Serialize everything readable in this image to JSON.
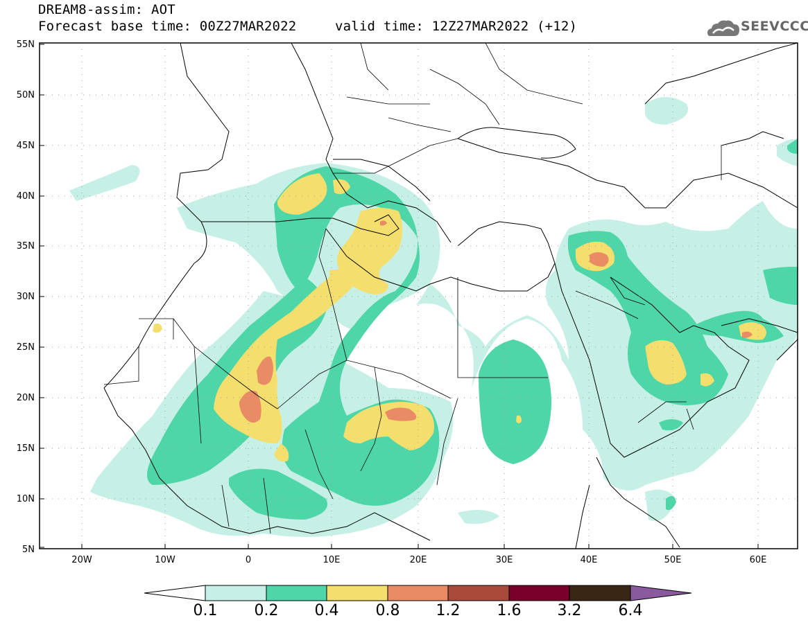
{
  "title": {
    "line1": "DREAM8-assim: AOT",
    "base_time": "Forecast base time: 00Z27MAR2022",
    "valid_time": "valid time: 12Z27MAR2022 (+12)"
  },
  "logo": {
    "text": "SEEVCCC",
    "icon": "cloud-icon"
  },
  "axes": {
    "lat_labels": [
      "55N",
      "50N",
      "45N",
      "40N",
      "35N",
      "30N",
      "25N",
      "20N",
      "15N",
      "10N",
      "5N"
    ],
    "lon_labels": [
      "20W",
      "10W",
      "0",
      "10E",
      "20E",
      "30E",
      "40E",
      "50E",
      "60E"
    ]
  },
  "colorbar": {
    "labels": [
      "0.1",
      "0.2",
      "0.4",
      "0.8",
      "1.2",
      "1.6",
      "3.2",
      "6.4"
    ],
    "colors": [
      "#ffffff",
      "#c6efe6",
      "#4fd6a8",
      "#f4df6e",
      "#e98b64",
      "#a94a3a",
      "#78002a",
      "#3a2614",
      "#8a5a9e"
    ]
  },
  "colors": {
    "light": "#c6efe6",
    "green": "#4fd6a8",
    "yellow": "#f4df6e",
    "orange": "#e98b64",
    "coast": "#000000"
  }
}
